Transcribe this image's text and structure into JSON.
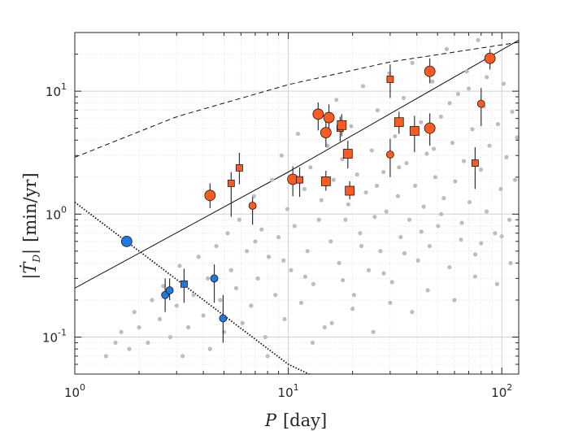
{
  "chart_data": {
    "type": "scatter",
    "xscale": "log",
    "yscale": "log",
    "xlim": [
      1,
      120
    ],
    "ylim": [
      0.05,
      30
    ],
    "grid": true,
    "xlabel": {
      "var": "P",
      "unit": "[day]"
    },
    "ylabel": {
      "var": "Ṫ",
      "sub": "D",
      "unit": "[min/yr]"
    },
    "xticks": [
      {
        "value": 1,
        "base": "10",
        "exp": "0"
      },
      {
        "value": 10,
        "base": "10",
        "exp": "1"
      },
      {
        "value": 100,
        "base": "10",
        "exp": "2"
      }
    ],
    "yticks": [
      {
        "value": 0.1,
        "base": "10",
        "exp": "-1"
      },
      {
        "value": 1,
        "base": "10",
        "exp": "0"
      },
      {
        "value": 10,
        "base": "10",
        "exp": "1"
      }
    ],
    "colors": {
      "orange": "#ff5a1f",
      "blue": "#1f7ae0",
      "gray": "#bdbdbd",
      "line": "#111111"
    },
    "lines": [
      {
        "name": "solid",
        "style": "solid",
        "points": [
          [
            1,
            0.25
          ],
          [
            10,
            2.2
          ],
          [
            120,
            26
          ]
        ]
      },
      {
        "name": "dashed",
        "style": "dashed",
        "points": [
          [
            1,
            2.9
          ],
          [
            3,
            6.2
          ],
          [
            10,
            11.3
          ],
          [
            30,
            17.3
          ],
          [
            120,
            25
          ]
        ]
      },
      {
        "name": "dotted",
        "style": "dotted",
        "points": [
          [
            1,
            1.25
          ],
          [
            10,
            0.06
          ],
          [
            12.5,
            0.05
          ]
        ]
      }
    ],
    "background": [
      [
        1.4,
        0.07
      ],
      [
        1.55,
        0.09
      ],
      [
        1.65,
        0.11
      ],
      [
        1.8,
        0.08
      ],
      [
        1.9,
        0.16
      ],
      [
        2.0,
        0.12
      ],
      [
        2.2,
        0.09
      ],
      [
        2.3,
        0.2
      ],
      [
        2.5,
        0.14
      ],
      [
        2.6,
        0.26
      ],
      [
        2.8,
        0.1
      ],
      [
        3.0,
        0.18
      ],
      [
        3.1,
        0.38
      ],
      [
        3.2,
        0.07
      ],
      [
        3.4,
        0.12
      ],
      [
        3.6,
        0.22
      ],
      [
        3.8,
        0.45
      ],
      [
        4.0,
        0.15
      ],
      [
        4.2,
        0.3
      ],
      [
        4.3,
        0.08
      ],
      [
        4.6,
        0.55
      ],
      [
        4.8,
        0.2
      ],
      [
        5.0,
        0.11
      ],
      [
        5.2,
        0.7
      ],
      [
        5.4,
        0.35
      ],
      [
        5.7,
        0.25
      ],
      [
        5.9,
        0.9
      ],
      [
        6.1,
        0.13
      ],
      [
        6.4,
        0.5
      ],
      [
        6.7,
        0.18
      ],
      [
        6.9,
        1.4
      ],
      [
        7.2,
        0.3
      ],
      [
        7.5,
        0.75
      ],
      [
        7.8,
        0.1
      ],
      [
        8.1,
        0.45
      ],
      [
        8.4,
        1.9
      ],
      [
        8.7,
        0.22
      ],
      [
        9.0,
        0.65
      ],
      [
        9.3,
        3.0
      ],
      [
        9.6,
        0.14
      ],
      [
        9.9,
        1.1
      ],
      [
        10.3,
        0.35
      ],
      [
        10.7,
        0.8
      ],
      [
        11.1,
        4.5
      ],
      [
        11.5,
        0.19
      ],
      [
        11.9,
        1.6
      ],
      [
        12.3,
        0.5
      ],
      [
        12.7,
        2.4
      ],
      [
        13.1,
        0.27
      ],
      [
        13.5,
        6.5
      ],
      [
        13.9,
        0.9
      ],
      [
        14.3,
        1.3
      ],
      [
        14.8,
        0.12
      ],
      [
        15.3,
        3.6
      ],
      [
        15.8,
        0.6
      ],
      [
        16.3,
        1.9
      ],
      [
        16.8,
        8.5
      ],
      [
        17.3,
        0.4
      ],
      [
        17.9,
        2.8
      ],
      [
        18.5,
        0.9
      ],
      [
        19.1,
        1.2
      ],
      [
        19.7,
        5.2
      ],
      [
        20.3,
        0.22
      ],
      [
        21.0,
        2.1
      ],
      [
        21.7,
        0.7
      ],
      [
        22.4,
        11.0
      ],
      [
        23.1,
        1.5
      ],
      [
        23.8,
        0.35
      ],
      [
        24.6,
        3.3
      ],
      [
        25.4,
        0.95
      ],
      [
        26.2,
        7.0
      ],
      [
        27.0,
        0.5
      ],
      [
        27.9,
        2.2
      ],
      [
        28.8,
        1.05
      ],
      [
        29.7,
        14.0
      ],
      [
        30.6,
        0.28
      ],
      [
        31.6,
        4.3
      ],
      [
        32.6,
        1.4
      ],
      [
        33.6,
        0.65
      ],
      [
        34.7,
        8.8
      ],
      [
        35.8,
        2.6
      ],
      [
        36.9,
        0.9
      ],
      [
        38.1,
        17.0
      ],
      [
        39.3,
        1.7
      ],
      [
        40.5,
        0.42
      ],
      [
        41.8,
        5.6
      ],
      [
        43.1,
        1.15
      ],
      [
        44.5,
        3.1
      ],
      [
        45.9,
        0.55
      ],
      [
        47.3,
        12.0
      ],
      [
        48.8,
        2.0
      ],
      [
        50.3,
        0.8
      ],
      [
        51.9,
        6.2
      ],
      [
        53.5,
        1.35
      ],
      [
        55.2,
        22.0
      ],
      [
        56.9,
        0.37
      ],
      [
        58.7,
        3.8
      ],
      [
        60.5,
        1.85
      ],
      [
        62.4,
        9.5
      ],
      [
        64.4,
        0.62
      ],
      [
        66.4,
        2.7
      ],
      [
        68.5,
        14.5
      ],
      [
        70.6,
        1.25
      ],
      [
        72.8,
        4.9
      ],
      [
        75.1,
        0.47
      ],
      [
        77.4,
        26.0
      ],
      [
        79.8,
        2.3
      ],
      [
        82.3,
        7.5
      ],
      [
        84.9,
        1.05
      ],
      [
        87.5,
        3.6
      ],
      [
        90.2,
        18.0
      ],
      [
        93.0,
        0.7
      ],
      [
        95.9,
        5.4
      ],
      [
        98.9,
        1.6
      ],
      [
        102.0,
        11.5
      ],
      [
        105.2,
        2.9
      ],
      [
        108.5,
        0.9
      ],
      [
        111.9,
        6.8
      ],
      [
        115.4,
        1.9
      ],
      [
        118.0,
        4.2
      ],
      [
        13.0,
        0.09
      ],
      [
        16.0,
        0.13
      ],
      [
        20.0,
        0.17
      ],
      [
        25.0,
        0.11
      ],
      [
        30.0,
        0.19
      ],
      [
        38.0,
        0.16
      ],
      [
        45.0,
        0.24
      ],
      [
        60.0,
        0.2
      ],
      [
        75.0,
        0.31
      ],
      [
        95.0,
        0.27
      ],
      [
        110.0,
        0.4
      ],
      [
        8.0,
        0.07
      ],
      [
        22.0,
        0.55
      ],
      [
        28.0,
        0.33
      ],
      [
        35.0,
        0.48
      ],
      [
        42.0,
        0.72
      ],
      [
        52.0,
        1.0
      ],
      [
        65.0,
        0.85
      ],
      [
        80.0,
        0.58
      ],
      [
        100.0,
        0.66
      ],
      [
        12.0,
        0.31
      ],
      [
        18.0,
        0.29
      ],
      [
        7.0,
        0.6
      ],
      [
        9.5,
        0.42
      ],
      [
        26.0,
        1.7
      ],
      [
        33.0,
        2.4
      ],
      [
        48.0,
        3.4
      ],
      [
        57.0,
        8.0
      ],
      [
        70.0,
        10.5
      ],
      [
        85.0,
        13.0
      ]
    ],
    "series": [
      {
        "name": "orange-circles",
        "color": "orange",
        "marker": "circle",
        "points": [
          {
            "x": 4.3,
            "y": 1.42,
            "size": "lg",
            "err": [
              1.12,
              1.78
            ]
          },
          {
            "x": 6.8,
            "y": 1.17,
            "size": "sm",
            "err": [
              0.82,
              1.38
            ]
          },
          {
            "x": 10.5,
            "y": 1.92,
            "size": "lg",
            "err": [
              1.4,
              2.45
            ]
          },
          {
            "x": 13.8,
            "y": 6.5,
            "size": "lg",
            "err": [
              4.8,
              8.1
            ]
          },
          {
            "x": 15.0,
            "y": 4.6,
            "size": "lg",
            "err": [
              3.5,
              6.1
            ]
          },
          {
            "x": 15.5,
            "y": 6.1,
            "size": "lg",
            "err": [
              4.6,
              7.8
            ]
          },
          {
            "x": 30.0,
            "y": 3.05,
            "size": "sm",
            "err": [
              2.0,
              4.1
            ]
          },
          {
            "x": 46.0,
            "y": 14.5,
            "size": "lg",
            "err": [
              11.6,
              18.5
            ]
          },
          {
            "x": 46.0,
            "y": 5.0,
            "size": "lg",
            "err": [
              3.6,
              6.6
            ]
          },
          {
            "x": 80.0,
            "y": 7.9,
            "size": "sm",
            "err": [
              5.2,
              10.6
            ]
          },
          {
            "x": 88.0,
            "y": 18.5,
            "size": "lg",
            "err": [
              15.0,
              22.0
            ]
          }
        ]
      },
      {
        "name": "orange-squares",
        "color": "orange",
        "marker": "square",
        "points": [
          {
            "x": 5.4,
            "y": 1.78,
            "size": "sm",
            "err": [
              0.95,
              2.2
            ]
          },
          {
            "x": 5.9,
            "y": 2.38,
            "size": "sm",
            "err": [
              1.75,
              3.15
            ]
          },
          {
            "x": 11.3,
            "y": 1.9,
            "size": "sm",
            "err": [
              1.38,
              2.4
            ]
          },
          {
            "x": 15.0,
            "y": 1.85,
            "size": "lg",
            "err": [
              1.55,
              2.25
            ]
          },
          {
            "x": 17.5,
            "y": 5.0,
            "size": "sm",
            "err": [
              3.9,
              6.2
            ]
          },
          {
            "x": 17.8,
            "y": 5.3,
            "size": "lg",
            "err": [
              4.3,
              6.5
            ]
          },
          {
            "x": 19.0,
            "y": 3.1,
            "size": "lg",
            "err": [
              2.35,
              3.95
            ]
          },
          {
            "x": 19.4,
            "y": 1.55,
            "size": "lg",
            "err": [
              1.32,
              1.85
            ]
          },
          {
            "x": 30.0,
            "y": 12.5,
            "size": "sm",
            "err": [
              8.8,
              16.5
            ]
          },
          {
            "x": 33.0,
            "y": 5.6,
            "size": "lg",
            "err": [
              4.5,
              6.8
            ]
          },
          {
            "x": 39.0,
            "y": 4.75,
            "size": "lg",
            "err": [
              3.2,
              6.3
            ]
          },
          {
            "x": 75.0,
            "y": 2.6,
            "size": "sm",
            "err": [
              1.6,
              3.5
            ]
          }
        ]
      },
      {
        "name": "blue-circles",
        "color": "blue",
        "marker": "circle",
        "points": [
          {
            "x": 1.75,
            "y": 0.6,
            "size": "lg",
            "err": null
          },
          {
            "x": 2.65,
            "y": 0.22,
            "size": "sm",
            "err": [
              0.16,
              0.3
            ]
          },
          {
            "x": 2.78,
            "y": 0.24,
            "size": "sm",
            "err": [
              0.2,
              0.3
            ]
          },
          {
            "x": 4.5,
            "y": 0.3,
            "size": "sm",
            "err": [
              0.19,
              0.39
            ]
          },
          {
            "x": 4.95,
            "y": 0.142,
            "size": "sm",
            "err": [
              0.09,
              0.22
            ]
          }
        ]
      },
      {
        "name": "blue-squares",
        "color": "blue",
        "marker": "square",
        "points": [
          {
            "x": 3.25,
            "y": 0.27,
            "size": "sm",
            "err": [
              0.19,
              0.36
            ]
          }
        ]
      }
    ]
  }
}
